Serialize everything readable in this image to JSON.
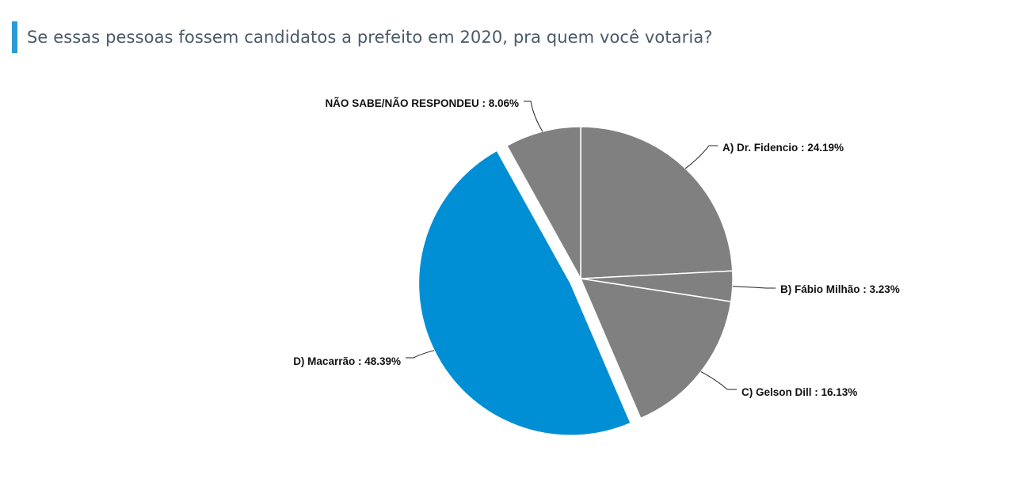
{
  "title": "Se essas pessoas fossem candidatos a prefeito em 2020, pra quem você votaria?",
  "colors": {
    "title_accent": "#2b9bd6",
    "default_slice": "#808080",
    "highlight_slice": "#008fd5"
  },
  "chart_data": {
    "type": "pie",
    "start_angle_deg": 0,
    "direction": "clockwise",
    "exploded_slice": "D) Macarrão",
    "slices": [
      {
        "label": "A) Dr. Fidencio",
        "value": 24.19,
        "color": "#808080",
        "label_text": "A) Dr. Fidencio : 24.19%"
      },
      {
        "label": "B) Fábio Milhão",
        "value": 3.23,
        "color": "#808080",
        "label_text": "B) Fábio Milhão : 3.23%"
      },
      {
        "label": "C) Gelson Dill",
        "value": 16.13,
        "color": "#808080",
        "label_text": "C) Gelson Dill : 16.13%"
      },
      {
        "label": "D) Macarrão",
        "value": 48.39,
        "color": "#008fd5",
        "label_text": "D) Macarrão : 48.39%"
      },
      {
        "label": "NÃO SABE/NÃO RESPONDEU",
        "value": 8.06,
        "color": "#808080",
        "label_text": "NÃO SABE/NÃO RESPONDEU : 8.06%"
      }
    ]
  }
}
